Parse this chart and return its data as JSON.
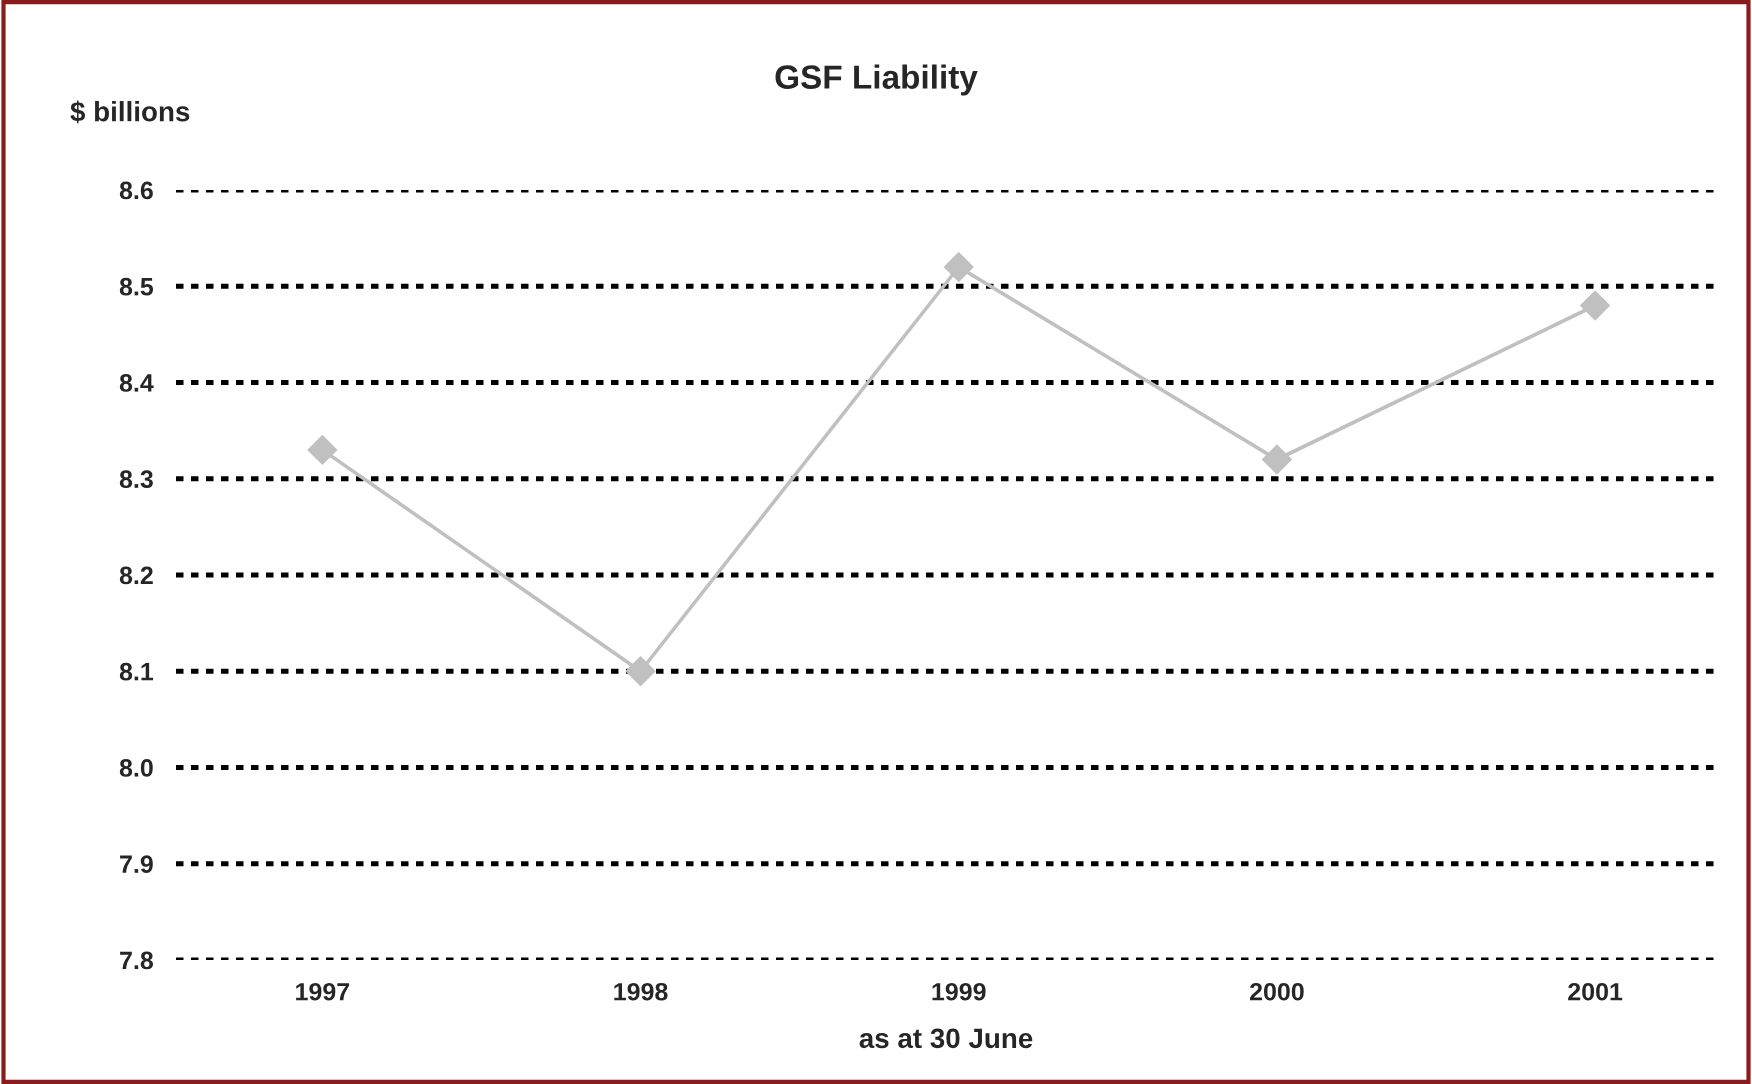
{
  "chart_data": {
    "type": "line",
    "title": "GSF Liability",
    "ylabel": "$ billions",
    "xlabel": "as at 30 June",
    "categories": [
      "1997",
      "1998",
      "1999",
      "2000",
      "2001"
    ],
    "series": [
      {
        "color": "#c0c0c0",
        "values": [
          8.33,
          8.1,
          8.52,
          8.32,
          8.48
        ]
      }
    ],
    "ylim": [
      7.8,
      8.6
    ],
    "yticks": [
      {
        "value": 7.8,
        "label": "7.8"
      },
      {
        "value": 7.9,
        "label": "7.9"
      },
      {
        "value": 8.0,
        "label": "8.0"
      },
      {
        "value": 8.1,
        "label": "8.1"
      },
      {
        "value": 8.2,
        "label": "8.2"
      },
      {
        "value": 8.3,
        "label": "8.3"
      },
      {
        "value": 8.4,
        "label": "8.4"
      },
      {
        "value": 8.5,
        "label": "8.5"
      },
      {
        "value": 8.6,
        "label": "8.6"
      }
    ],
    "grid": "y",
    "marker": "diamond",
    "line_style": "solid",
    "legend": false
  }
}
